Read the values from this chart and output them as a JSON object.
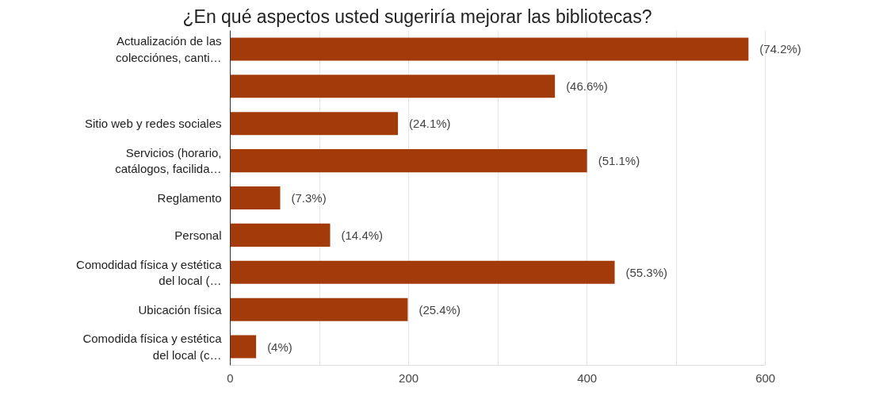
{
  "chart_data": {
    "type": "bar",
    "orientation": "horizontal",
    "title": "¿En qué aspectos usted sugeriría mejorar las bibliotecas?",
    "categories": [
      "Actualización de las colecciónes, canti…",
      null,
      "Sitio web y redes sociales",
      "Servicios (horario, catálogos, facilida…",
      "Reglamento",
      "Personal",
      "Comodidad física y estética del local (…",
      "Ubicación física",
      "Comodida física y estética del local (c…"
    ],
    "values": [
      581,
      364,
      188,
      400,
      56,
      112,
      431,
      199,
      29
    ],
    "annotations": [
      {
        "text": "(74.2%)",
        "x": 581,
        "y": "Actualización de las colecciónes, canti…"
      },
      {
        "text": "(46.6%)",
        "x": 364
      },
      {
        "text": "(24.1%)",
        "x": 188,
        "y": "Sitio web y redes sociales"
      },
      {
        "text": "(51.1%)",
        "x": 400,
        "y": "Servicios (horario, catálogos, facilida…"
      },
      {
        "text": "(7.3%)",
        "x": 56,
        "y": "Reglamento"
      },
      {
        "text": "(14.4%)",
        "x": 112,
        "y": "Personal"
      },
      {
        "text": "(55.3%)",
        "x": 431,
        "y": "Comodidad física y estética del local (…"
      },
      {
        "text": "(25.4%)",
        "x": 199,
        "y": "Ubicación física"
      },
      {
        "text": "(4%)",
        "x": 29,
        "y": "Comodida física y estética del local (c…"
      }
    ],
    "color": "#a33a0a",
    "xlim": [
      0,
      600
    ],
    "xticks": [
      0,
      {
        "value": 100,
        "label": null
      },
      200,
      {
        "value": 300,
        "label": null
      },
      400,
      {
        "value": 500,
        "label": null
      },
      600
    ],
    "grid": "x"
  }
}
